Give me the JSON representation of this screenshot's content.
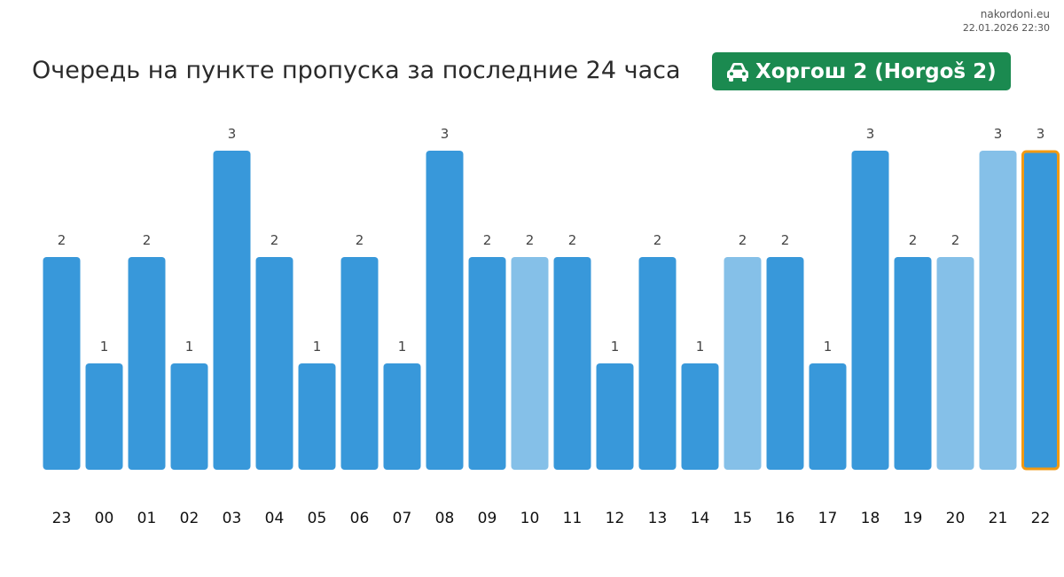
{
  "source": {
    "site": "nakordoni.eu",
    "timestamp": "22.01.2026 22:30"
  },
  "header": {
    "title": "Очередь на пункте пропуска за последние 24 часа",
    "badge_label": "Хоргош 2 (Horgoš 2)",
    "badge_icon": "car-icon",
    "badge_color": "#1b8a50"
  },
  "colors": {
    "bar": "#3898da",
    "bar_light": "#85c0e8",
    "highlight_border": "#f29a12",
    "label": "#444444",
    "tick": "#111111"
  },
  "chart_data": {
    "type": "bar",
    "title": "Очередь на пункте пропуска за последние 24 часа",
    "xlabel": "",
    "ylabel": "",
    "categories": [
      "23",
      "00",
      "01",
      "02",
      "03",
      "04",
      "05",
      "06",
      "07",
      "08",
      "09",
      "10",
      "11",
      "12",
      "13",
      "14",
      "15",
      "16",
      "17",
      "18",
      "19",
      "20",
      "21",
      "22"
    ],
    "values": [
      2,
      1,
      2,
      1,
      3,
      2,
      1,
      2,
      1,
      3,
      2,
      2,
      2,
      1,
      2,
      1,
      2,
      2,
      1,
      3,
      2,
      2,
      3,
      3
    ],
    "light": [
      false,
      false,
      false,
      false,
      false,
      false,
      false,
      false,
      false,
      false,
      false,
      true,
      false,
      false,
      false,
      false,
      true,
      false,
      false,
      false,
      false,
      true,
      true,
      false
    ],
    "highlighted_category": "22",
    "ylim": [
      0,
      3
    ],
    "grid": false,
    "legend": "none",
    "data_labels": true
  }
}
